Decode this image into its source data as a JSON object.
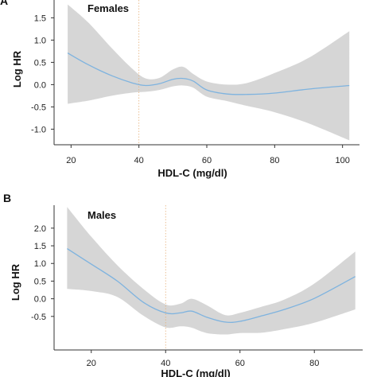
{
  "chart_data": [
    {
      "panel": "A",
      "type": "line",
      "title": "Females",
      "xlabel": "HDL-C (mg/dl)",
      "ylabel": "Log HR",
      "xlim": [
        15,
        105
      ],
      "ylim": [
        -1.35,
        1.9
      ],
      "xticks": [
        20,
        40,
        60,
        80,
        100
      ],
      "yticks": [
        1.5,
        1.0,
        0.5,
        0.0,
        -0.5,
        -1.0
      ],
      "ytick_labels": [
        "1.5",
        "1.0",
        "0.5",
        "0.0",
        "-0.5",
        "-1.0"
      ],
      "reference_x": 40,
      "series": [
        {
          "x": [
            19,
            25,
            32,
            38,
            42,
            46,
            50,
            53,
            56,
            60,
            66,
            72,
            80,
            90,
            102
          ],
          "y": [
            0.71,
            0.45,
            0.2,
            0.04,
            -0.02,
            0.02,
            0.12,
            0.14,
            0.08,
            -0.12,
            -0.21,
            -0.22,
            -0.19,
            -0.1,
            -0.02
          ],
          "lower": [
            -0.43,
            -0.36,
            -0.25,
            -0.18,
            -0.16,
            -0.12,
            -0.04,
            -0.02,
            -0.07,
            -0.27,
            -0.37,
            -0.48,
            -0.62,
            -0.87,
            -1.25
          ],
          "upper": [
            1.8,
            1.4,
            0.82,
            0.36,
            0.14,
            0.15,
            0.34,
            0.4,
            0.24,
            0.07,
            0.0,
            0.04,
            0.26,
            0.6,
            1.2
          ]
        }
      ],
      "colors": {
        "line": "#7eb3df",
        "band": "#cfcfcf",
        "reference": "#e6b07a"
      }
    },
    {
      "panel": "B",
      "type": "line",
      "title": "Males",
      "xlabel": "HDL-C (mg/dl)",
      "ylabel": "Log HR",
      "xlim": [
        10,
        93
      ],
      "ylim": [
        -1.45,
        2.65
      ],
      "xticks": [
        20,
        40,
        60,
        80
      ],
      "yticks": [
        2.0,
        1.5,
        1.0,
        0.5,
        0.0,
        -0.5
      ],
      "ytick_labels": [
        "2.0",
        "1.5",
        "1.0",
        "0.5",
        "0.0",
        "-0.5"
      ],
      "reference_x": 40,
      "series": [
        {
          "x": [
            13.5,
            20,
            27,
            34,
            40,
            44,
            47,
            51,
            56,
            60,
            66,
            72,
            80,
            91
          ],
          "y": [
            1.42,
            0.98,
            0.5,
            -0.1,
            -0.4,
            -0.4,
            -0.35,
            -0.52,
            -0.66,
            -0.64,
            -0.48,
            -0.3,
            0.01,
            0.63
          ],
          "lower": [
            0.28,
            0.22,
            0.05,
            -0.48,
            -0.81,
            -0.78,
            -0.82,
            -0.97,
            -1.01,
            -0.97,
            -0.96,
            -0.86,
            -0.68,
            -0.3
          ],
          "upper": [
            2.6,
            1.76,
            0.95,
            0.28,
            -0.16,
            -0.14,
            0.0,
            -0.18,
            -0.46,
            -0.4,
            -0.22,
            -0.02,
            0.43,
            1.34
          ]
        }
      ],
      "colors": {
        "line": "#7eb3df",
        "band": "#cfcfcf",
        "reference": "#e6b07a"
      }
    }
  ]
}
